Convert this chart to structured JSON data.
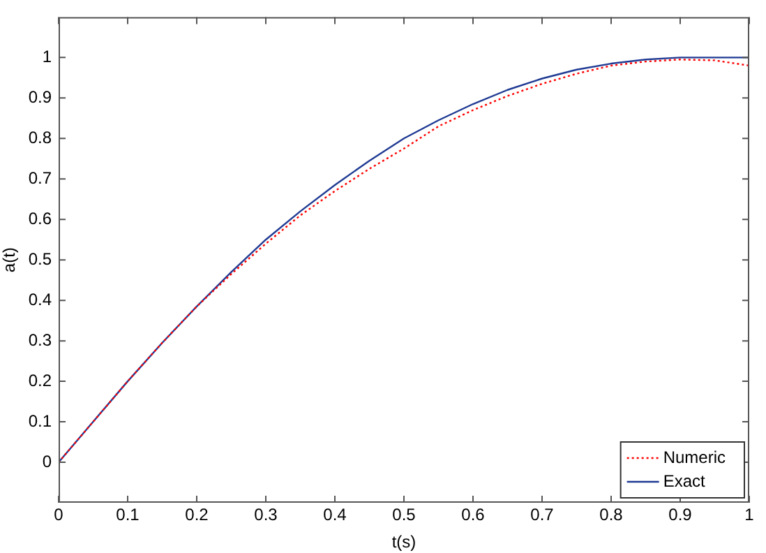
{
  "chart_data": {
    "type": "line",
    "xlabel": "t(s)",
    "ylabel": "a(t)",
    "x": [
      0,
      0.05,
      0.1,
      0.15,
      0.2,
      0.25,
      0.3,
      0.35,
      0.4,
      0.45,
      0.5,
      0.55,
      0.6,
      0.65,
      0.7,
      0.75,
      0.8,
      0.85,
      0.9,
      0.95,
      1
    ],
    "series": [
      {
        "name": "Numeric",
        "color": "#ff0000",
        "line_style": "dotted",
        "values": [
          0,
          0.1,
          0.2,
          0.295,
          0.385,
          0.465,
          0.54,
          0.61,
          0.67,
          0.725,
          0.775,
          0.83,
          0.87,
          0.905,
          0.935,
          0.96,
          0.98,
          0.99,
          0.995,
          0.993,
          0.98
        ]
      },
      {
        "name": "Exact",
        "color": "#1f3a93",
        "line_style": "solid",
        "values": [
          0,
          0.1,
          0.2,
          0.295,
          0.385,
          0.47,
          0.55,
          0.62,
          0.685,
          0.745,
          0.8,
          0.845,
          0.885,
          0.92,
          0.948,
          0.97,
          0.985,
          0.995,
          1,
          1,
          1
        ]
      }
    ],
    "xlim": [
      0,
      1
    ],
    "xticks": [
      0,
      0.1,
      0.2,
      0.3,
      0.4,
      0.5,
      0.6,
      0.7,
      0.8,
      0.9,
      1
    ],
    "ylim": [
      -0.1,
      1.1
    ],
    "yticks": [
      0,
      0.1,
      0.2,
      0.3,
      0.4,
      0.5,
      0.6,
      0.7,
      0.8,
      0.9,
      1
    ],
    "grid": false,
    "legend": "bottom right",
    "marker": "none"
  }
}
